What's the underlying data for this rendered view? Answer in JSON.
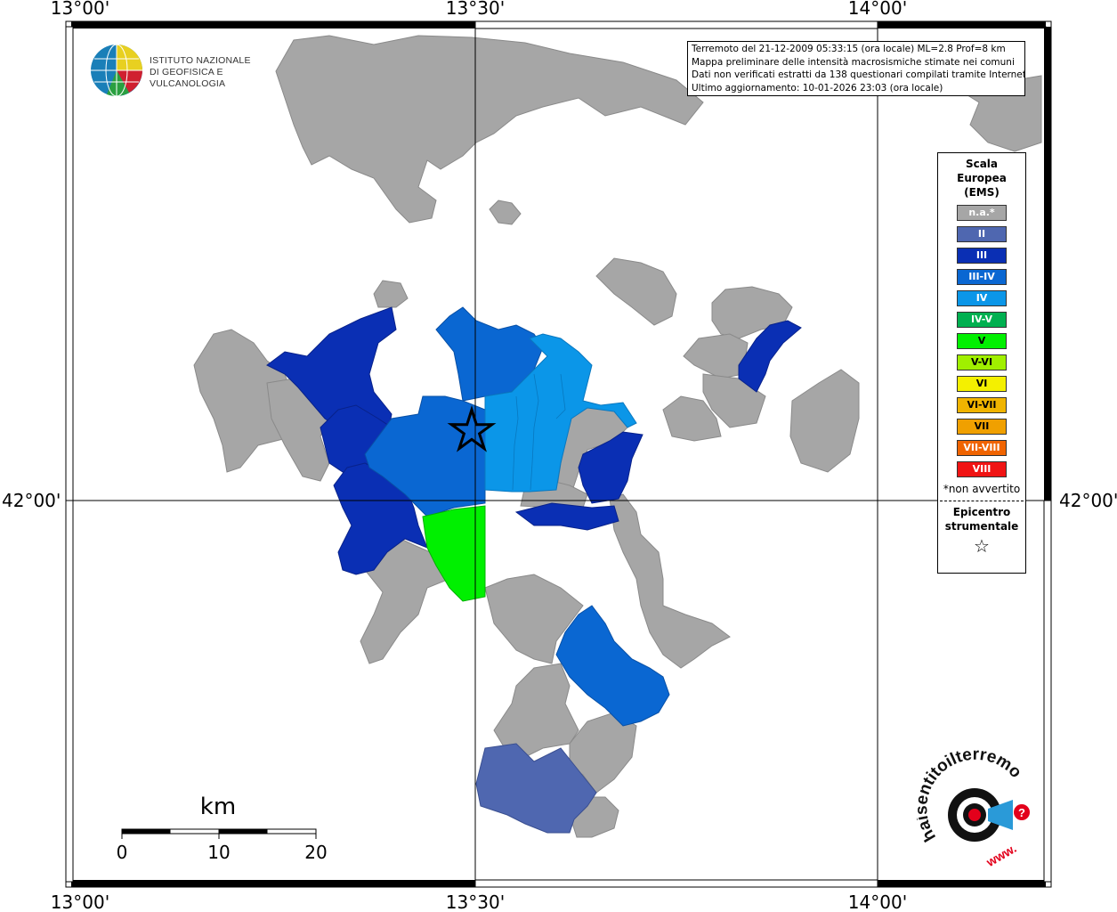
{
  "axes": {
    "top_ticks": [
      "13°00'",
      "13°30'",
      "14°00'"
    ],
    "bottom_ticks": [
      "13°00'",
      "13°30'",
      "14°00'"
    ],
    "left_tick": "42°00'",
    "right_tick": "42°00'"
  },
  "institution": {
    "line1": "ISTITUTO NAZIONALE",
    "line2": "DI GEOFISICA E VULCANOLOGIA"
  },
  "info": {
    "line1": "Terremoto del 21-12-2009 05:33:15 (ora locale) ML=2.8 Prof=8 km",
    "line2": "Mappa preliminare delle intensità macrosismiche stimate nei comuni",
    "line3": "Dati non verificati estratti da 138 questionari compilati tramite Internet.",
    "line4": "Ultimo aggiornamento: 10-01-2026 23:03 (ora locale)"
  },
  "legend": {
    "title1": "Scala",
    "title2": "Europea",
    "title3": "(EMS)",
    "items": [
      {
        "label": "n.a.*",
        "color": "#a6a6a6"
      },
      {
        "label": "II",
        "color": "#4f67b0"
      },
      {
        "label": "III",
        "color": "#0a2fb4"
      },
      {
        "label": "III-IV",
        "color": "#0a67d2"
      },
      {
        "label": "IV",
        "color": "#0b96e8"
      },
      {
        "label": "IV-V",
        "color": "#00b050"
      },
      {
        "label": "V",
        "color": "#00f000"
      },
      {
        "label": "V-VI",
        "color": "#a0f000"
      },
      {
        "label": "VI",
        "color": "#f4f000"
      },
      {
        "label": "VI-VII",
        "color": "#f0b400"
      },
      {
        "label": "VII",
        "color": "#f0a000"
      },
      {
        "label": "VII-VIII",
        "color": "#f06400"
      },
      {
        "label": "VIII",
        "color": "#f01414"
      }
    ],
    "note": "*non avvertito",
    "epicenter1": "Epicentro",
    "epicenter2": "strumentale",
    "star": "☆"
  },
  "scalebar": {
    "unit": "km",
    "ticks": [
      "0",
      "10",
      "20"
    ]
  },
  "hsl_logo": {
    "text": "haisentitoilterremoto.it",
    "www": "www.",
    "accent": "#e3001b"
  },
  "colors": {
    "na": "#a6a6a6",
    "II": "#4f67b0",
    "III": "#0a2fb4",
    "III_IV": "#0a67d2",
    "IV": "#0b96e8",
    "V": "#00f000"
  }
}
